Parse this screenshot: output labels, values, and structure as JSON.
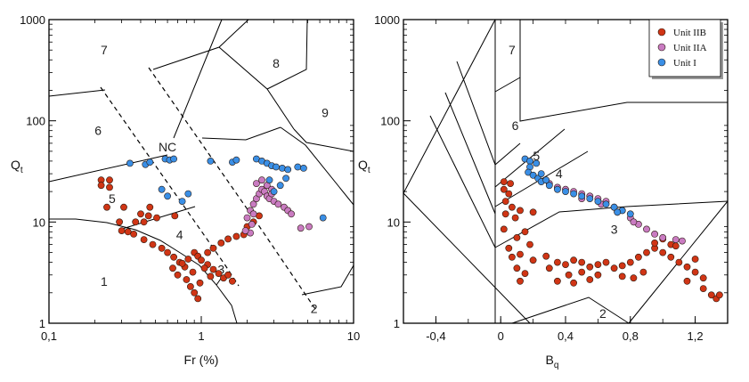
{
  "chart_data": [
    {
      "type": "scatter",
      "panel": "left",
      "xscale": "log",
      "yscale": "log",
      "xlim": [
        0.1,
        10
      ],
      "ylim": [
        1,
        1000
      ],
      "xlabel": "Fr (%)",
      "ylabel": "Qt",
      "ylabel_main": "Q",
      "ylabel_sub": "t",
      "x_ticks": [
        {
          "v": 0.1,
          "label": "0,1"
        },
        {
          "v": 1,
          "label": "1"
        },
        {
          "v": 10,
          "label": "10"
        }
      ],
      "y_ticks": [
        {
          "v": 1,
          "label": "1"
        },
        {
          "v": 10,
          "label": "10"
        },
        {
          "v": 100,
          "label": "100"
        },
        {
          "v": 1000,
          "label": "1000"
        }
      ],
      "zone_labels": [
        {
          "text": "7",
          "x": 0.23,
          "y": 500
        },
        {
          "text": "8",
          "x": 3.1,
          "y": 370
        },
        {
          "text": "9",
          "x": 6.5,
          "y": 120
        },
        {
          "text": "6",
          "x": 0.21,
          "y": 80
        },
        {
          "text": "NC",
          "x": 0.6,
          "y": 55
        },
        {
          "text": "5",
          "x": 0.26,
          "y": 17
        },
        {
          "text": "4",
          "x": 0.72,
          "y": 7.5
        },
        {
          "text": "3",
          "x": 1.35,
          "y": 3.4
        },
        {
          "text": "1",
          "x": 0.23,
          "y": 2.6
        },
        {
          "text": "2",
          "x": 5.5,
          "y": 1.4
        }
      ],
      "series": [
        {
          "name": "Unit IIB",
          "color": "#d03515",
          "points": [
            [
              0.22,
              26
            ],
            [
              0.25,
              26
            ],
            [
              0.22,
              23
            ],
            [
              0.25,
              22
            ],
            [
              0.24,
              14
            ],
            [
              0.31,
              14
            ],
            [
              0.46,
              14
            ],
            [
              0.4,
              12
            ],
            [
              0.45,
              11.5
            ],
            [
              0.51,
              11
            ],
            [
              0.67,
              11.5
            ],
            [
              0.29,
              10
            ],
            [
              0.37,
              10
            ],
            [
              0.42,
              10
            ],
            [
              0.3,
              8.2
            ],
            [
              0.33,
              8
            ],
            [
              0.36,
              7.6
            ],
            [
              0.42,
              6.7
            ],
            [
              0.48,
              6
            ],
            [
              0.55,
              5.5
            ],
            [
              0.6,
              5
            ],
            [
              0.66,
              4.5
            ],
            [
              0.72,
              4
            ],
            [
              0.78,
              3.6
            ],
            [
              0.65,
              3.5
            ],
            [
              0.7,
              3
            ],
            [
              0.8,
              2.7
            ],
            [
              0.85,
              2.3
            ],
            [
              0.9,
              2
            ],
            [
              0.95,
              1.75
            ],
            [
              0.9,
              5
            ],
            [
              0.95,
              4.6
            ],
            [
              1,
              4.2
            ],
            [
              1.1,
              3.8
            ],
            [
              1.2,
              3.4
            ],
            [
              1.3,
              3.1
            ],
            [
              1.4,
              2.8
            ],
            [
              1.5,
              3
            ],
            [
              1.6,
              2.6
            ],
            [
              1.2,
              5.5
            ],
            [
              1.35,
              6.2
            ],
            [
              1.5,
              6.8
            ],
            [
              1.7,
              7.2
            ],
            [
              1.9,
              7.5
            ],
            [
              2,
              9
            ],
            [
              2.2,
              10
            ],
            [
              2.4,
              11.5
            ],
            [
              1.1,
              5
            ],
            [
              0.82,
              4.3
            ],
            [
              0.75,
              3.9
            ],
            [
              0.88,
              3.2
            ],
            [
              1.05,
              3.5
            ],
            [
              1.15,
              2.9
            ],
            [
              0.98,
              2.5
            ]
          ]
        },
        {
          "name": "Unit IIA",
          "color": "#c97bc1",
          "points": [
            [
              2,
              11
            ],
            [
              2.1,
              13
            ],
            [
              2.2,
              15
            ],
            [
              2.3,
              17
            ],
            [
              2.4,
              19
            ],
            [
              2.5,
              21
            ],
            [
              2.6,
              20
            ],
            [
              2.7,
              18
            ],
            [
              2.8,
              17
            ],
            [
              3,
              16
            ],
            [
              3.2,
              15
            ],
            [
              2.3,
              24
            ],
            [
              2.5,
              26
            ],
            [
              2.7,
              23
            ],
            [
              2.9,
              21
            ],
            [
              2.1,
              7.8
            ],
            [
              1.95,
              8.2
            ],
            [
              2.15,
              9.5
            ],
            [
              2.2,
              12
            ],
            [
              2.9,
              19
            ],
            [
              3.5,
              14
            ],
            [
              3.7,
              13
            ],
            [
              3.9,
              12
            ],
            [
              4.5,
              8.7
            ],
            [
              5.1,
              9
            ]
          ]
        },
        {
          "name": "Unit I",
          "color": "#3a8fe6",
          "points": [
            [
              0.34,
              38
            ],
            [
              0.43,
              37
            ],
            [
              0.46,
              39
            ],
            [
              0.58,
              42
            ],
            [
              0.62,
              41
            ],
            [
              0.66,
              42
            ],
            [
              1.15,
              40
            ],
            [
              1.6,
              39
            ],
            [
              1.7,
              41
            ],
            [
              2.3,
              42
            ],
            [
              2.5,
              40
            ],
            [
              2.7,
              38
            ],
            [
              2.9,
              36
            ],
            [
              3.1,
              35
            ],
            [
              3.4,
              34
            ],
            [
              3.7,
              33
            ],
            [
              4.3,
              35
            ],
            [
              4.7,
              34
            ],
            [
              3.6,
              27
            ],
            [
              3.3,
              23
            ],
            [
              3,
              20
            ],
            [
              2.8,
              26
            ],
            [
              0.55,
              21
            ],
            [
              0.6,
              18
            ],
            [
              0.75,
              16
            ],
            [
              0.82,
              19
            ],
            [
              6.3,
              11
            ]
          ]
        }
      ]
    },
    {
      "type": "scatter",
      "panel": "right",
      "xscale": "linear",
      "yscale": "log",
      "xlim": [
        -0.6,
        1.4
      ],
      "ylim": [
        1,
        1000
      ],
      "xlabel": "Bq",
      "xlabel_main": "B",
      "xlabel_sub": "q",
      "ylabel": "Qt",
      "ylabel_main": "Q",
      "ylabel_sub": "t",
      "x_ticks": [
        {
          "v": -0.4,
          "label": "-0,4"
        },
        {
          "v": 0,
          "label": "0"
        },
        {
          "v": 0.4,
          "label": "0,4"
        },
        {
          "v": 0.8,
          "label": "0,8"
        },
        {
          "v": 1.2,
          "label": "1,2"
        }
      ],
      "y_ticks": [
        {
          "v": 1,
          "label": "1"
        },
        {
          "v": 10,
          "label": "10"
        },
        {
          "v": 100,
          "label": "100"
        },
        {
          "v": 1000,
          "label": "1000"
        }
      ],
      "zone_labels": [
        {
          "text": "7",
          "x": 0.07,
          "y": 500
        },
        {
          "text": "6",
          "x": 0.09,
          "y": 90
        },
        {
          "text": "5",
          "x": 0.22,
          "y": 45
        },
        {
          "text": "4",
          "x": 0.36,
          "y": 30
        },
        {
          "text": "3",
          "x": 0.7,
          "y": 8.5
        },
        {
          "text": "2",
          "x": 0.63,
          "y": 1.25
        }
      ],
      "legend": {
        "position": "top-right",
        "entries": [
          "Unit IIB",
          "Unit IIA",
          "Unit I"
        ]
      },
      "series": [
        {
          "name": "Unit IIB",
          "color": "#d03515",
          "points": [
            [
              0.02,
              25
            ],
            [
              0.06,
              24
            ],
            [
              0.02,
              21
            ],
            [
              0.05,
              19
            ],
            [
              0.03,
              16
            ],
            [
              0.07,
              14
            ],
            [
              0.03,
              12
            ],
            [
              0.09,
              11
            ],
            [
              0.12,
              13
            ],
            [
              0.2,
              12.5
            ],
            [
              0.15,
              8
            ],
            [
              0.02,
              8.5
            ],
            [
              0.1,
              7
            ],
            [
              0.05,
              5.5
            ],
            [
              0.12,
              4.8
            ],
            [
              0.07,
              4.5
            ],
            [
              0.2,
              4.2
            ],
            [
              0.28,
              4.6
            ],
            [
              0.3,
              3.5
            ],
            [
              0.35,
              4
            ],
            [
              0.4,
              3.8
            ],
            [
              0.45,
              4.2
            ],
            [
              0.5,
              4
            ],
            [
              0.55,
              3.6
            ],
            [
              0.6,
              3.8
            ],
            [
              0.65,
              4
            ],
            [
              0.7,
              3.5
            ],
            [
              0.75,
              3.7
            ],
            [
              0.8,
              4
            ],
            [
              0.85,
              4.5
            ],
            [
              0.9,
              5
            ],
            [
              0.95,
              5.5
            ],
            [
              1,
              5
            ],
            [
              1.05,
              4.5
            ],
            [
              1.1,
              4
            ],
            [
              1.15,
              3.6
            ],
            [
              1.2,
              3.2
            ],
            [
              1.25,
              2.8
            ],
            [
              0.95,
              6.2
            ],
            [
              1,
              6.8
            ],
            [
              1.05,
              6
            ],
            [
              1.08,
              5.8
            ],
            [
              0.88,
              3.2
            ],
            [
              0.82,
              2.8
            ],
            [
              0.75,
              2.9
            ],
            [
              0.6,
              3
            ],
            [
              0.5,
              3.2
            ],
            [
              0.42,
              3
            ],
            [
              0.35,
              2.6
            ],
            [
              0.45,
              2.5
            ],
            [
              0.55,
              2.7
            ],
            [
              1.25,
              2.2
            ],
            [
              1.3,
              1.9
            ],
            [
              1.33,
              1.75
            ],
            [
              1.35,
              1.9
            ],
            [
              1.2,
              4.3
            ],
            [
              1.15,
              2.6
            ],
            [
              0.12,
              2.6
            ],
            [
              0.15,
              3.1
            ],
            [
              0.1,
              3.5
            ],
            [
              0.18,
              6
            ]
          ]
        },
        {
          "name": "Unit IIA",
          "color": "#c97bc1",
          "points": [
            [
              0.3,
              24
            ],
            [
              0.35,
              22
            ],
            [
              0.4,
              21
            ],
            [
              0.45,
              20
            ],
            [
              0.5,
              19
            ],
            [
              0.55,
              18
            ],
            [
              0.6,
              17
            ],
            [
              0.65,
              16
            ],
            [
              0.7,
              14
            ],
            [
              0.75,
              13
            ],
            [
              0.8,
              11
            ],
            [
              0.85,
              9.5
            ],
            [
              0.9,
              8.5
            ],
            [
              0.95,
              7.6
            ],
            [
              1,
              7
            ],
            [
              1.08,
              6.7
            ],
            [
              1.12,
              6.5
            ],
            [
              0.5,
              17
            ],
            [
              0.62,
              15
            ],
            [
              0.72,
              12.5
            ],
            [
              0.82,
              10
            ]
          ]
        },
        {
          "name": "Unit I",
          "color": "#3a8fe6",
          "points": [
            [
              0.15,
              42
            ],
            [
              0.18,
              40
            ],
            [
              0.22,
              38
            ],
            [
              0.18,
              35
            ],
            [
              0.17,
              31
            ],
            [
              0.2,
              29
            ],
            [
              0.23,
              27
            ],
            [
              0.25,
              25
            ],
            [
              0.3,
              23
            ],
            [
              0.35,
              21
            ],
            [
              0.4,
              20
            ],
            [
              0.45,
              19
            ],
            [
              0.5,
              18
            ],
            [
              0.55,
              17
            ],
            [
              0.6,
              16
            ],
            [
              0.65,
              15
            ],
            [
              0.7,
              14
            ],
            [
              0.75,
              13
            ],
            [
              0.8,
              12
            ],
            [
              0.72,
              12.5
            ],
            [
              0.25,
              30
            ],
            [
              0.28,
              26
            ]
          ]
        }
      ]
    }
  ]
}
